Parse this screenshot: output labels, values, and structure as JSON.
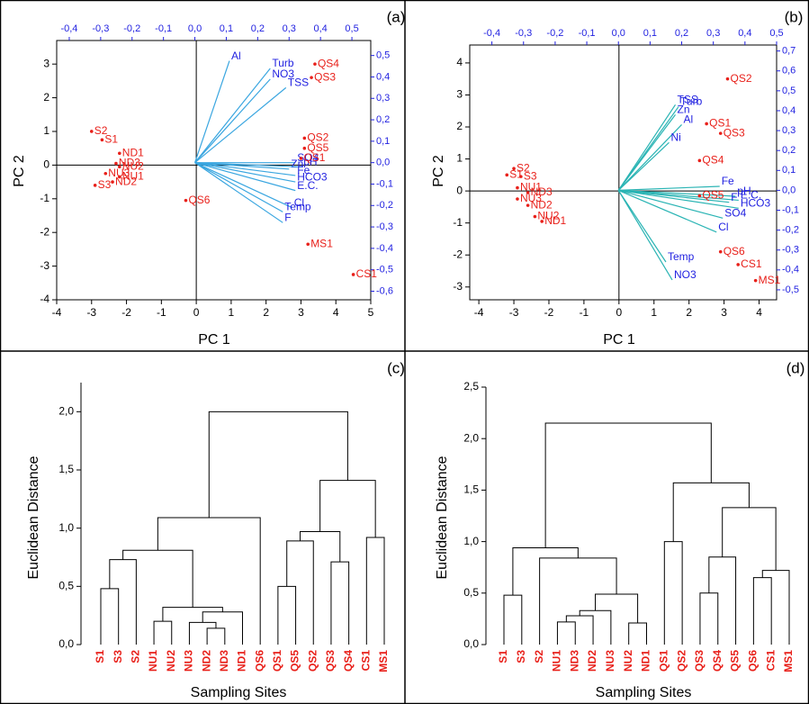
{
  "chart_data": [
    {
      "type": "biplot",
      "label": "(a)",
      "xlabel": "PC 1",
      "ylabel": "PC 2",
      "xlim": [
        -4,
        5
      ],
      "ylim": [
        -4,
        3.7
      ],
      "xticks": [
        -4,
        -3,
        -2,
        -1,
        0,
        1,
        2,
        3,
        4,
        5
      ],
      "yticks": [
        -4,
        -3,
        -2,
        -1,
        0,
        1,
        2,
        3
      ],
      "x2lim": [
        -0.44,
        0.56
      ],
      "x2ticks": [
        {
          "value": -0.4,
          "label": "-0,4"
        },
        {
          "value": -0.3,
          "label": "-0,3"
        },
        {
          "value": -0.2,
          "label": "-0,2"
        },
        {
          "value": -0.1,
          "label": "-0,1"
        },
        {
          "value": 0,
          "label": "0,0"
        },
        {
          "value": 0.1,
          "label": "0,1"
        },
        {
          "value": 0.2,
          "label": "0,2"
        },
        {
          "value": 0.3,
          "label": "0,3"
        },
        {
          "value": 0.4,
          "label": "0,4"
        },
        {
          "value": 0.5,
          "label": "0,5"
        }
      ],
      "y2lim": [
        -0.64,
        0.57
      ],
      "y2ticks": [
        {
          "value": -0.6,
          "label": "-0,6"
        },
        {
          "value": -0.5,
          "label": "-0,5"
        },
        {
          "value": -0.4,
          "label": "-0,4"
        },
        {
          "value": -0.3,
          "label": "-0,3"
        },
        {
          "value": -0.2,
          "label": "-0,2"
        },
        {
          "value": -0.1,
          "label": "-0,1"
        },
        {
          "value": 0,
          "label": "0,0"
        },
        {
          "value": 0.1,
          "label": "0,1"
        },
        {
          "value": 0.2,
          "label": "0,2"
        },
        {
          "value": 0.3,
          "label": "0,3"
        },
        {
          "value": 0.4,
          "label": "0,4"
        },
        {
          "value": 0.5,
          "label": "0,5"
        }
      ],
      "loading_color": "#3aa6e0",
      "score_color": "#e8201a",
      "label_color": "#1f1fe0",
      "loadings": [
        {
          "name": "Al",
          "x": 0.11,
          "y": 0.475
        },
        {
          "name": "Turb",
          "x": 0.24,
          "y": 0.44
        },
        {
          "name": "NO3",
          "x": 0.24,
          "y": 0.39
        },
        {
          "name": "TSS",
          "x": 0.29,
          "y": 0.35
        },
        {
          "name": "SO4",
          "x": 0.32,
          "y": 0.0
        },
        {
          "name": "Zn",
          "x": 0.3,
          "y": -0.03
        },
        {
          "name": "pH",
          "x": 0.34,
          "y": -0.02
        },
        {
          "name": "Fe",
          "x": 0.32,
          "y": -0.06
        },
        {
          "name": "HCO3",
          "x": 0.32,
          "y": -0.09
        },
        {
          "name": "E.C.",
          "x": 0.32,
          "y": -0.13
        },
        {
          "name": "Cl",
          "x": 0.31,
          "y": -0.21
        },
        {
          "name": "Temp",
          "x": 0.28,
          "y": -0.23
        },
        {
          "name": "F",
          "x": 0.28,
          "y": -0.28
        }
      ],
      "scores": [
        {
          "name": "S2",
          "x": -3.0,
          "y": 1.0
        },
        {
          "name": "S1",
          "x": -2.7,
          "y": 0.75
        },
        {
          "name": "ND1",
          "x": -2.2,
          "y": 0.35
        },
        {
          "name": "ND3",
          "x": -2.3,
          "y": 0.05
        },
        {
          "name": "NU2",
          "x": -2.2,
          "y": -0.05
        },
        {
          "name": "NU3",
          "x": -2.6,
          "y": -0.25
        },
        {
          "name": "NU1",
          "x": -2.2,
          "y": -0.35
        },
        {
          "name": "ND2",
          "x": -2.4,
          "y": -0.5
        },
        {
          "name": "S3",
          "x": -2.9,
          "y": -0.6
        },
        {
          "name": "QS6",
          "x": -0.3,
          "y": -1.05
        },
        {
          "name": "QS4",
          "x": 3.4,
          "y": 3.0
        },
        {
          "name": "QS3",
          "x": 3.3,
          "y": 2.6
        },
        {
          "name": "QS2",
          "x": 3.1,
          "y": 0.8
        },
        {
          "name": "QS5",
          "x": 3.1,
          "y": 0.5
        },
        {
          "name": "QS1",
          "x": 3.0,
          "y": 0.2
        },
        {
          "name": "MS1",
          "x": 3.2,
          "y": -2.35
        },
        {
          "name": "CS1",
          "x": 4.5,
          "y": -3.25
        }
      ]
    },
    {
      "type": "biplot",
      "label": "(b)",
      "xlabel": "PC 1",
      "ylabel": "PC 2",
      "xlim": [
        -4.26,
        4.5
      ],
      "ylim": [
        -3.4,
        4.56
      ],
      "xticks": [
        -4,
        -3,
        -2,
        -1,
        0,
        1,
        2,
        3,
        4
      ],
      "yticks": [
        -3,
        -2,
        -1,
        0,
        1,
        2,
        3,
        4
      ],
      "x2lim": [
        -0.47,
        0.5
      ],
      "x2ticks": [
        {
          "value": -0.4,
          "label": "-0,4"
        },
        {
          "value": -0.3,
          "label": "-0,3"
        },
        {
          "value": -0.2,
          "label": "-0,2"
        },
        {
          "value": -0.1,
          "label": "-0,1"
        },
        {
          "value": 0,
          "label": "0,0"
        },
        {
          "value": 0.1,
          "label": "0,1"
        },
        {
          "value": 0.2,
          "label": "0,2"
        },
        {
          "value": 0.3,
          "label": "0,3"
        },
        {
          "value": 0.4,
          "label": "0,4"
        },
        {
          "value": 0.5,
          "label": "0,5"
        }
      ],
      "y2lim": [
        -0.55,
        0.73
      ],
      "y2ticks": [
        {
          "value": -0.5,
          "label": "-0,5"
        },
        {
          "value": -0.4,
          "label": "-0,4"
        },
        {
          "value": -0.3,
          "label": "-0,3"
        },
        {
          "value": -0.2,
          "label": "-0,2"
        },
        {
          "value": -0.1,
          "label": "-0,1"
        },
        {
          "value": 0,
          "label": "0,0"
        },
        {
          "value": 0.1,
          "label": "0,1"
        },
        {
          "value": 0.2,
          "label": "0,2"
        },
        {
          "value": 0.3,
          "label": "0,3"
        },
        {
          "value": 0.4,
          "label": "0,4"
        },
        {
          "value": 0.5,
          "label": "0,5"
        },
        {
          "value": 0.6,
          "label": "0,6"
        },
        {
          "value": 0.7,
          "label": "0,7"
        }
      ],
      "loading_color": "#2ab4b4",
      "score_color": "#e8201a",
      "label_color": "#1f1fe0",
      "loadings": [
        {
          "name": "Turb",
          "x": 0.19,
          "y": 0.42
        },
        {
          "name": "TSS",
          "x": 0.18,
          "y": 0.43
        },
        {
          "name": "Zn",
          "x": 0.18,
          "y": 0.38
        },
        {
          "name": "Al",
          "x": 0.2,
          "y": 0.33
        },
        {
          "name": "Ni",
          "x": 0.16,
          "y": 0.24
        },
        {
          "name": "Fe",
          "x": 0.32,
          "y": 0.02
        },
        {
          "name": "pH",
          "x": 0.37,
          "y": -0.03
        },
        {
          "name": "E.C.",
          "x": 0.38,
          "y": -0.05
        },
        {
          "name": "F",
          "x": 0.35,
          "y": -0.06
        },
        {
          "name": "HCO3",
          "x": 0.38,
          "y": -0.09
        },
        {
          "name": "SO4",
          "x": 0.33,
          "y": -0.14
        },
        {
          "name": "Cl",
          "x": 0.31,
          "y": -0.21
        },
        {
          "name": "Temp",
          "x": 0.15,
          "y": -0.36
        },
        {
          "name": "NO3",
          "x": 0.17,
          "y": -0.45
        }
      ],
      "scores": [
        {
          "name": "QS2",
          "x": 3.1,
          "y": 3.5
        },
        {
          "name": "QS1",
          "x": 2.5,
          "y": 2.1
        },
        {
          "name": "QS3",
          "x": 2.9,
          "y": 1.8
        },
        {
          "name": "QS4",
          "x": 2.3,
          "y": 0.95
        },
        {
          "name": "QS5",
          "x": 2.3,
          "y": -0.15
        },
        {
          "name": "QS6",
          "x": 2.9,
          "y": -1.9
        },
        {
          "name": "CS1",
          "x": 3.4,
          "y": -2.3
        },
        {
          "name": "MS1",
          "x": 3.9,
          "y": -2.8
        },
        {
          "name": "S2",
          "x": -3.0,
          "y": 0.7
        },
        {
          "name": "S3",
          "x": -2.8,
          "y": 0.45
        },
        {
          "name": "S1",
          "x": -3.2,
          "y": 0.5
        },
        {
          "name": "NU1",
          "x": -2.9,
          "y": 0.1
        },
        {
          "name": "ND3",
          "x": -2.6,
          "y": -0.05
        },
        {
          "name": "NU3",
          "x": -2.9,
          "y": -0.25
        },
        {
          "name": "ND2",
          "x": -2.6,
          "y": -0.45
        },
        {
          "name": "NU2",
          "x": -2.4,
          "y": -0.8
        },
        {
          "name": "ND1",
          "x": -2.2,
          "y": -0.95
        }
      ]
    },
    {
      "type": "dendrogram",
      "label": "(c)",
      "xlabel": "Sampling Sites",
      "ylabel": "Euclidean Distance",
      "ylim": [
        0,
        2.25
      ],
      "yticks": [
        {
          "value": 0,
          "label": "0,0"
        },
        {
          "value": 0.5,
          "label": "0,5"
        },
        {
          "value": 1.0,
          "label": "1,0"
        },
        {
          "value": 1.5,
          "label": "1,5"
        },
        {
          "value": 2.0,
          "label": "2,0"
        }
      ],
      "leaf_color": "#e8201a",
      "tree": {
        "height": 2.0,
        "children": [
          {
            "height": 1.09,
            "children": [
              {
                "height": 0.81,
                "children": [
                  {
                    "height": 0.73,
                    "children": [
                      {
                        "height": 0.48,
                        "children": [
                          "S1",
                          "S3"
                        ]
                      },
                      "S2"
                    ]
                  },
                  {
                    "height": 0.32,
                    "children": [
                      {
                        "height": 0.2,
                        "children": [
                          "NU1",
                          "NU2"
                        ]
                      },
                      {
                        "height": 0.28,
                        "children": [
                          {
                            "height": 0.19,
                            "children": [
                              "NU3",
                              {
                                "height": 0.14,
                                "children": [
                                  "ND2",
                                  "ND3"
                                ]
                              }
                            ]
                          },
                          "ND1"
                        ]
                      }
                    ]
                  }
                ]
              },
              "QS6"
            ]
          },
          {
            "height": 1.41,
            "children": [
              {
                "height": 0.97,
                "children": [
                  {
                    "height": 0.89,
                    "children": [
                      {
                        "height": 0.5,
                        "children": [
                          "QS1",
                          "QS5"
                        ]
                      },
                      "QS2"
                    ]
                  },
                  {
                    "height": 0.71,
                    "children": [
                      "QS3",
                      "QS4"
                    ]
                  }
                ]
              },
              {
                "height": 0.92,
                "children": [
                  "CS1",
                  "MS1"
                ]
              }
            ]
          }
        ]
      }
    },
    {
      "type": "dendrogram",
      "label": "(d)",
      "xlabel": "Sampling Sites",
      "ylabel": "Euclidean Distance",
      "ylim": [
        0,
        2.5
      ],
      "yticks": [
        {
          "value": 0,
          "label": "0,0"
        },
        {
          "value": 0.5,
          "label": "0,5"
        },
        {
          "value": 1.0,
          "label": "1,0"
        },
        {
          "value": 1.5,
          "label": "1,5"
        },
        {
          "value": 2.0,
          "label": "2,0"
        },
        {
          "value": 2.5,
          "label": "2,5"
        }
      ],
      "leaf_color": "#e8201a",
      "tree": {
        "height": 2.15,
        "children": [
          {
            "height": 0.94,
            "children": [
              {
                "height": 0.48,
                "children": [
                  "S1",
                  "S3"
                ]
              },
              {
                "height": 0.84,
                "children": [
                  "S2",
                  {
                    "height": 0.49,
                    "children": [
                      {
                        "height": 0.33,
                        "children": [
                          {
                            "height": 0.28,
                            "children": [
                              {
                                "height": 0.22,
                                "children": [
                                  "NU1",
                                  "ND3"
                                ]
                              },
                              "ND2"
                            ]
                          },
                          "NU3"
                        ]
                      },
                      {
                        "height": 0.21,
                        "children": [
                          "NU2",
                          "ND1"
                        ]
                      }
                    ]
                  }
                ]
              }
            ]
          },
          {
            "height": 1.57,
            "children": [
              {
                "height": 1.0,
                "children": [
                  "QS1",
                  "QS2"
                ]
              },
              {
                "height": 1.33,
                "children": [
                  {
                    "height": 0.85,
                    "children": [
                      {
                        "height": 0.5,
                        "children": [
                          "QS3",
                          "QS4"
                        ]
                      },
                      "QS5"
                    ]
                  },
                  {
                    "height": 0.72,
                    "children": [
                      {
                        "height": 0.65,
                        "children": [
                          "QS6",
                          "CS1"
                        ]
                      },
                      "MS1"
                    ]
                  }
                ]
              }
            ]
          }
        ]
      }
    }
  ]
}
